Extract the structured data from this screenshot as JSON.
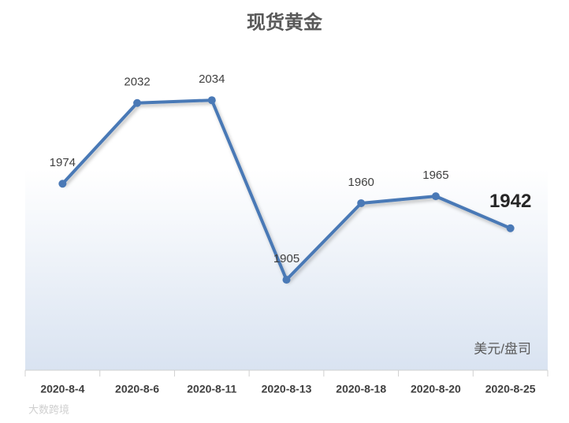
{
  "chart_data": {
    "type": "line",
    "title": "现货黄金",
    "categories": [
      "2020-8-4",
      "2020-8-6",
      "2020-8-11",
      "2020-8-13",
      "2020-8-18",
      "2020-8-20",
      "2020-8-25"
    ],
    "values": [
      1974,
      2032,
      2034,
      1905,
      1960,
      1965,
      1942
    ],
    "color": "#4a79b6",
    "ylim": [
      1840,
      2070
    ],
    "unit_label": "美元/盘司",
    "watermark": "大数跨境"
  }
}
